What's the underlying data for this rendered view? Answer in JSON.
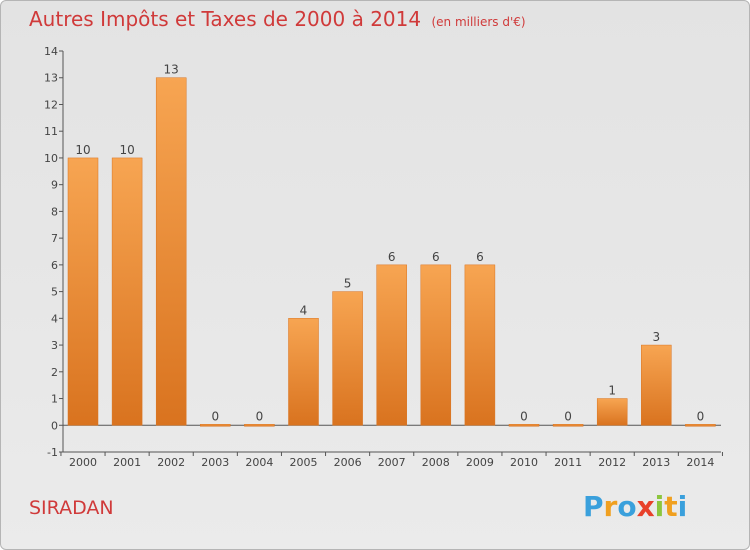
{
  "title": "Autres Impôts et Taxes de 2000 à 2014",
  "subtitle": "(en milliers d'€)",
  "commune": "SIRADAN",
  "logo": {
    "text": "Proxiti",
    "letters": [
      {
        "ch": "P",
        "color": "#3aa0dc"
      },
      {
        "ch": "r",
        "color": "#f0a020"
      },
      {
        "ch": "o",
        "color": "#3aa0dc"
      },
      {
        "ch": "x",
        "color": "#e8402a"
      },
      {
        "ch": "i",
        "color": "#8cc63e"
      },
      {
        "ch": "t",
        "color": "#f0a020"
      },
      {
        "ch": "i",
        "color": "#3aa0dc"
      }
    ]
  },
  "colors": {
    "title": "#d03a3a",
    "bar_light": "#f7a552",
    "bar_dark": "#d9731f",
    "axis": "#555555"
  },
  "chart_data": {
    "type": "bar",
    "title": "Autres Impôts et Taxes de 2000 à 2014",
    "subtitle": "(en milliers d'€)",
    "categories": [
      "2000",
      "2001",
      "2002",
      "2003",
      "2004",
      "2005",
      "2006",
      "2007",
      "2008",
      "2009",
      "2010",
      "2011",
      "2012",
      "2013",
      "2014"
    ],
    "values": [
      10,
      10,
      13,
      0,
      0,
      4,
      5,
      6,
      6,
      6,
      0,
      0,
      1,
      3,
      0
    ],
    "data_labels": [
      "10",
      "10",
      "13",
      "0",
      "0",
      "4",
      "5",
      "6",
      "6",
      "6",
      "0",
      "0",
      "1",
      "3",
      "0"
    ],
    "ylim": [
      -1,
      14
    ],
    "yticks": [
      -1,
      0,
      1,
      2,
      3,
      4,
      5,
      6,
      7,
      8,
      9,
      10,
      11,
      12,
      13,
      14
    ],
    "ytick_labels": [
      "-1",
      "0",
      "1",
      "2",
      "3",
      "4",
      "5",
      "6",
      "7",
      "8",
      "9",
      "10",
      "11",
      "12",
      "13",
      "14"
    ],
    "xlabel": "",
    "ylabel": "",
    "grid": false,
    "legend": "none"
  }
}
